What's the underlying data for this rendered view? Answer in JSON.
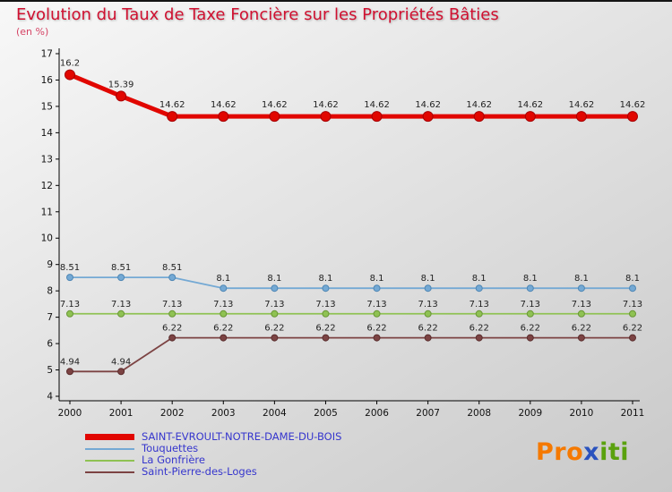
{
  "header": {
    "title": "Evolution du Taux de Taxe Foncière sur les Propriétés Bâties",
    "subtitle": "(en %)"
  },
  "colors": {
    "title": "#d01030",
    "subtitle": "#d54465",
    "legend_text": "#3636cd",
    "axis": "#000000",
    "data_label": "#222222",
    "background_top": "#f8f8f8",
    "background_bottom": "#c9c9c9"
  },
  "chart_data": {
    "type": "line",
    "title": "Evolution du Taux de Taxe Foncière sur les Propriétés Bâties",
    "unit": "%",
    "x": [
      2000,
      2001,
      2002,
      2003,
      2004,
      2005,
      2006,
      2007,
      2008,
      2009,
      2010,
      2011
    ],
    "ylim": [
      4,
      17
    ],
    "ytick_step": 1,
    "grid": false,
    "legend_position": "bottom-left",
    "series": [
      {
        "id": "saint-evroult",
        "name": "SAINT-EVROULT-NOTRE-DAME-DU-BOIS",
        "color": "#e10600",
        "marker_stroke": "#a80000",
        "line_width": 5,
        "marker_radius": 5.5,
        "values": [
          16.2,
          15.39,
          14.62,
          14.62,
          14.62,
          14.62,
          14.62,
          14.62,
          14.62,
          14.62,
          14.62,
          14.62
        ]
      },
      {
        "id": "touquettes",
        "name": "Touquettes",
        "color": "#74a9d4",
        "marker_stroke": "#4e86b4",
        "line_width": 1.8,
        "marker_radius": 3.5,
        "values": [
          8.51,
          8.51,
          8.51,
          8.1,
          8.1,
          8.1,
          8.1,
          8.1,
          8.1,
          8.1,
          8.1,
          8.1
        ]
      },
      {
        "id": "la-gonfriere",
        "name": "La Gonfrière",
        "color": "#8fc253",
        "marker_stroke": "#699636",
        "line_width": 1.8,
        "marker_radius": 3.5,
        "values": [
          7.13,
          7.13,
          7.13,
          7.13,
          7.13,
          7.13,
          7.13,
          7.13,
          7.13,
          7.13,
          7.13,
          7.13
        ]
      },
      {
        "id": "saint-pierre-des-loges",
        "name": "Saint-Pierre-des-Loges",
        "color": "#7c4343",
        "marker_stroke": "#5a2d2d",
        "line_width": 1.8,
        "marker_radius": 3.5,
        "values": [
          4.94,
          4.94,
          6.22,
          6.22,
          6.22,
          6.22,
          6.22,
          6.22,
          6.22,
          6.22,
          6.22,
          6.22
        ]
      }
    ]
  },
  "logo": {
    "parts": [
      {
        "text": "Pro",
        "color": "#f57900"
      },
      {
        "text": "x",
        "color": "#2a52be"
      },
      {
        "text": "iti",
        "color": "#5aa10e"
      }
    ]
  }
}
